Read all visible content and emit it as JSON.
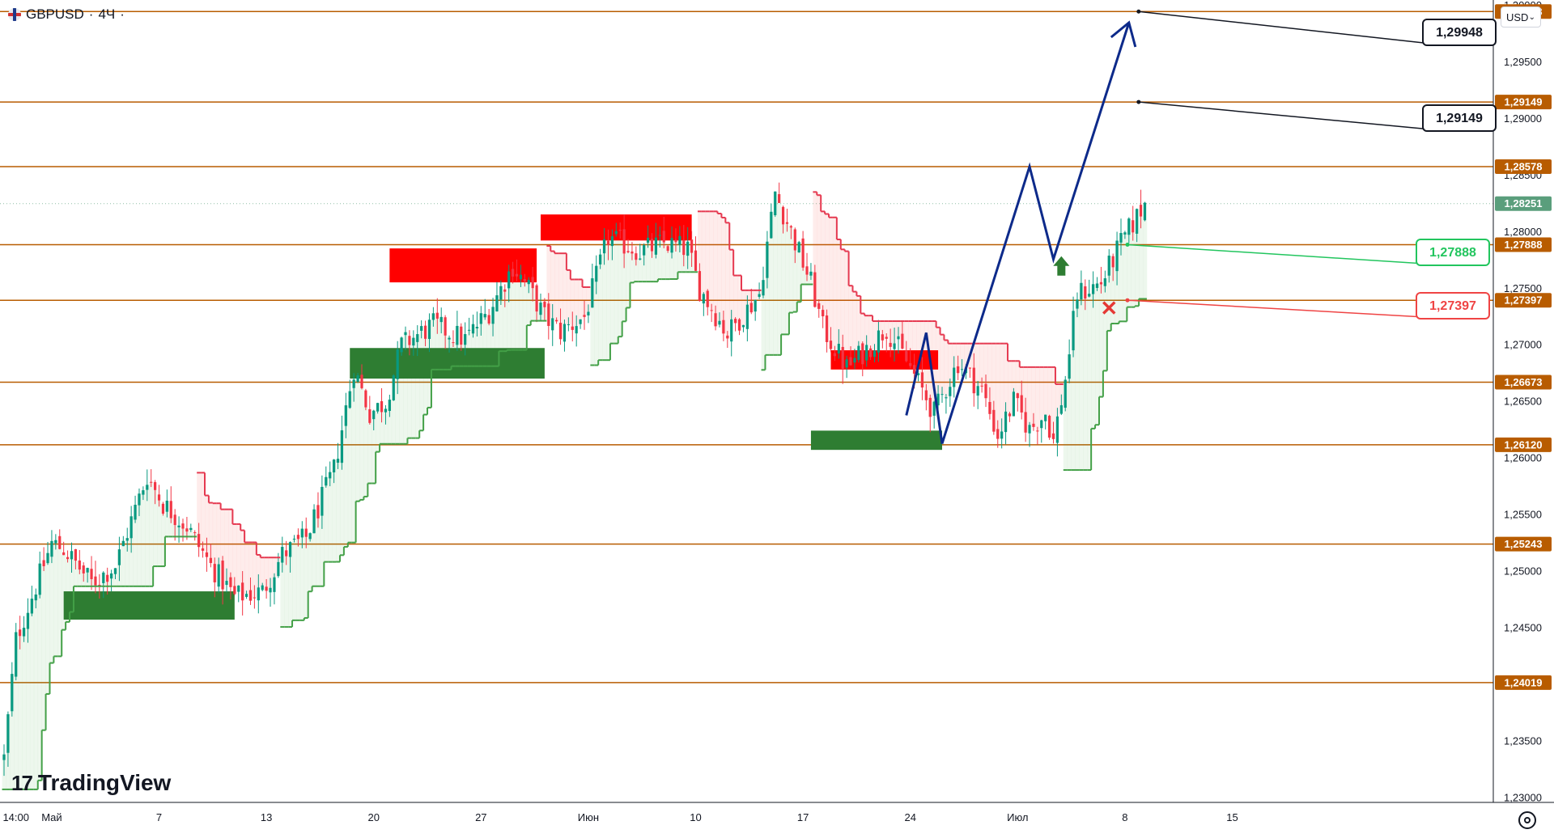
{
  "header": {
    "symbol": "GBPUSD",
    "timeframe": "4Ч",
    "separator": "·",
    "dot": "·"
  },
  "currency_selector": {
    "label": "USD",
    "chevron": "chevron-down-icon"
  },
  "logo": {
    "text": "TradingView",
    "mark": "17"
  },
  "colors": {
    "level_line": "#b85c00",
    "level_label_bg": "#b85c00",
    "bull": "#089981",
    "bear": "#f23645",
    "supply_zone": "#ff0000",
    "demand_zone": "#2e7d32",
    "forecast_path": "#0d2a8a",
    "green_callout": "#22c55e",
    "red_callout": "#ef4444",
    "current_price_bg": "#5a9e7c"
  },
  "chart_data": {
    "type": "candlestick",
    "y_axis": {
      "range": [
        1.2296,
        1.3005
      ],
      "ticks": [
        "1,23000",
        "1,23500",
        "1,24000",
        "1,24500",
        "1,25000",
        "1,25500",
        "1,26000",
        "1,26500",
        "1,27000",
        "1,27500",
        "1,28000",
        "1,28500",
        "1,29000",
        "1,29500",
        "1,30000"
      ],
      "tick_values": [
        1.23,
        1.235,
        1.24,
        1.245,
        1.25,
        1.255,
        1.26,
        1.265,
        1.27,
        1.275,
        1.28,
        1.285,
        1.29,
        1.295,
        1.3
      ]
    },
    "x_axis": {
      "labels": [
        "14:00",
        "Май",
        "7",
        "13",
        "20",
        "27",
        "Июн",
        "10",
        "17",
        "24",
        "Июл",
        "8",
        "15"
      ],
      "label_index": [
        3,
        12,
        39,
        66,
        93,
        120,
        147,
        174,
        201,
        228,
        255,
        282,
        309
      ]
    },
    "levels": [
      {
        "value": 1.29948,
        "label": "1,29948"
      },
      {
        "value": 1.29149,
        "label": "1,29149"
      },
      {
        "value": 1.28578,
        "label": "1,28578"
      },
      {
        "value": 1.27888,
        "label": "1,27888"
      },
      {
        "value": 1.27397,
        "label": "1,27397"
      },
      {
        "value": 1.26673,
        "label": "1,26673"
      },
      {
        "value": 1.2612,
        "label": "1,26120"
      },
      {
        "value": 1.25243,
        "label": "1,25243"
      },
      {
        "value": 1.24019,
        "label": "1,24019"
      }
    ],
    "current_price": {
      "value": 1.28251,
      "label": "1,28251"
    },
    "candle_count": 300,
    "close_anchors": [
      [
        0,
        1.2335
      ],
      [
        3,
        1.244
      ],
      [
        12,
        1.2525
      ],
      [
        15,
        1.252
      ],
      [
        22,
        1.249
      ],
      [
        28,
        1.2505
      ],
      [
        36,
        1.2585
      ],
      [
        40,
        1.256
      ],
      [
        46,
        1.254
      ],
      [
        52,
        1.2505
      ],
      [
        58,
        1.2478
      ],
      [
        65,
        1.2482
      ],
      [
        70,
        1.2515
      ],
      [
        76,
        1.253
      ],
      [
        83,
        1.259
      ],
      [
        88,
        1.268
      ],
      [
        92,
        1.264
      ],
      [
        96,
        1.265
      ],
      [
        100,
        1.27
      ],
      [
        108,
        1.2718
      ],
      [
        116,
        1.2705
      ],
      [
        122,
        1.273
      ],
      [
        128,
        1.277
      ],
      [
        132,
        1.275
      ],
      [
        136,
        1.2725
      ],
      [
        140,
        1.2712
      ],
      [
        146,
        1.2725
      ],
      [
        152,
        1.2795
      ],
      [
        160,
        1.2783
      ],
      [
        166,
        1.279
      ],
      [
        172,
        1.2785
      ],
      [
        175,
        1.275
      ],
      [
        182,
        1.271
      ],
      [
        190,
        1.2745
      ],
      [
        194,
        1.2835
      ],
      [
        198,
        1.28
      ],
      [
        203,
        1.2755
      ],
      [
        206,
        1.2715
      ],
      [
        212,
        1.268
      ],
      [
        218,
        1.27
      ],
      [
        222,
        1.2715
      ],
      [
        228,
        1.268
      ],
      [
        234,
        1.264
      ],
      [
        240,
        1.2685
      ],
      [
        246,
        1.266
      ],
      [
        250,
        1.262
      ],
      [
        254,
        1.265
      ],
      [
        258,
        1.2625
      ],
      [
        262,
        1.264
      ],
      [
        264,
        1.2615
      ],
      [
        267,
        1.267
      ],
      [
        270,
        1.2745
      ],
      [
        276,
        1.2755
      ],
      [
        281,
        1.279
      ],
      [
        287,
        1.2825
      ]
    ],
    "supply_zones": [
      {
        "i0": 97,
        "i1": 134,
        "top": 1.27855,
        "bottom": 1.27555
      },
      {
        "i0": 135,
        "i1": 173,
        "top": 1.28155,
        "bottom": 1.27925
      },
      {
        "i0": 208,
        "i1": 235,
        "top": 1.26955,
        "bottom": 1.26785
      }
    ],
    "demand_zones": [
      {
        "i0": 15,
        "i1": 58,
        "top": 1.24825,
        "bottom": 1.24575
      },
      {
        "i0": 87,
        "i1": 136,
        "top": 1.26975,
        "bottom": 1.26705
      },
      {
        "i0": 203,
        "i1": 236,
        "top": 1.26245,
        "bottom": 1.26075
      }
    ],
    "forecast_path": [
      [
        227,
        1.2638
      ],
      [
        232,
        1.2711
      ],
      [
        236,
        1.2613
      ],
      [
        258,
        1.28578
      ],
      [
        264,
        1.2776
      ],
      [
        283,
        1.2985
      ]
    ],
    "callouts": [
      {
        "label": "1,29948",
        "type": "target",
        "anchor": [
          283,
          1.29948
        ]
      },
      {
        "label": "1,29149",
        "type": "target",
        "anchor": [
          283,
          1.29149
        ]
      },
      {
        "label": "1,27888",
        "type": "entry",
        "anchor": [
          281,
          1.27888
        ]
      },
      {
        "label": "1,27397",
        "type": "stop",
        "anchor": [
          281,
          1.27397
        ]
      }
    ],
    "buy_arrow": {
      "index": 266,
      "value": 1.277
    },
    "stop_marker": {
      "index": 278,
      "value": 1.2733
    }
  }
}
